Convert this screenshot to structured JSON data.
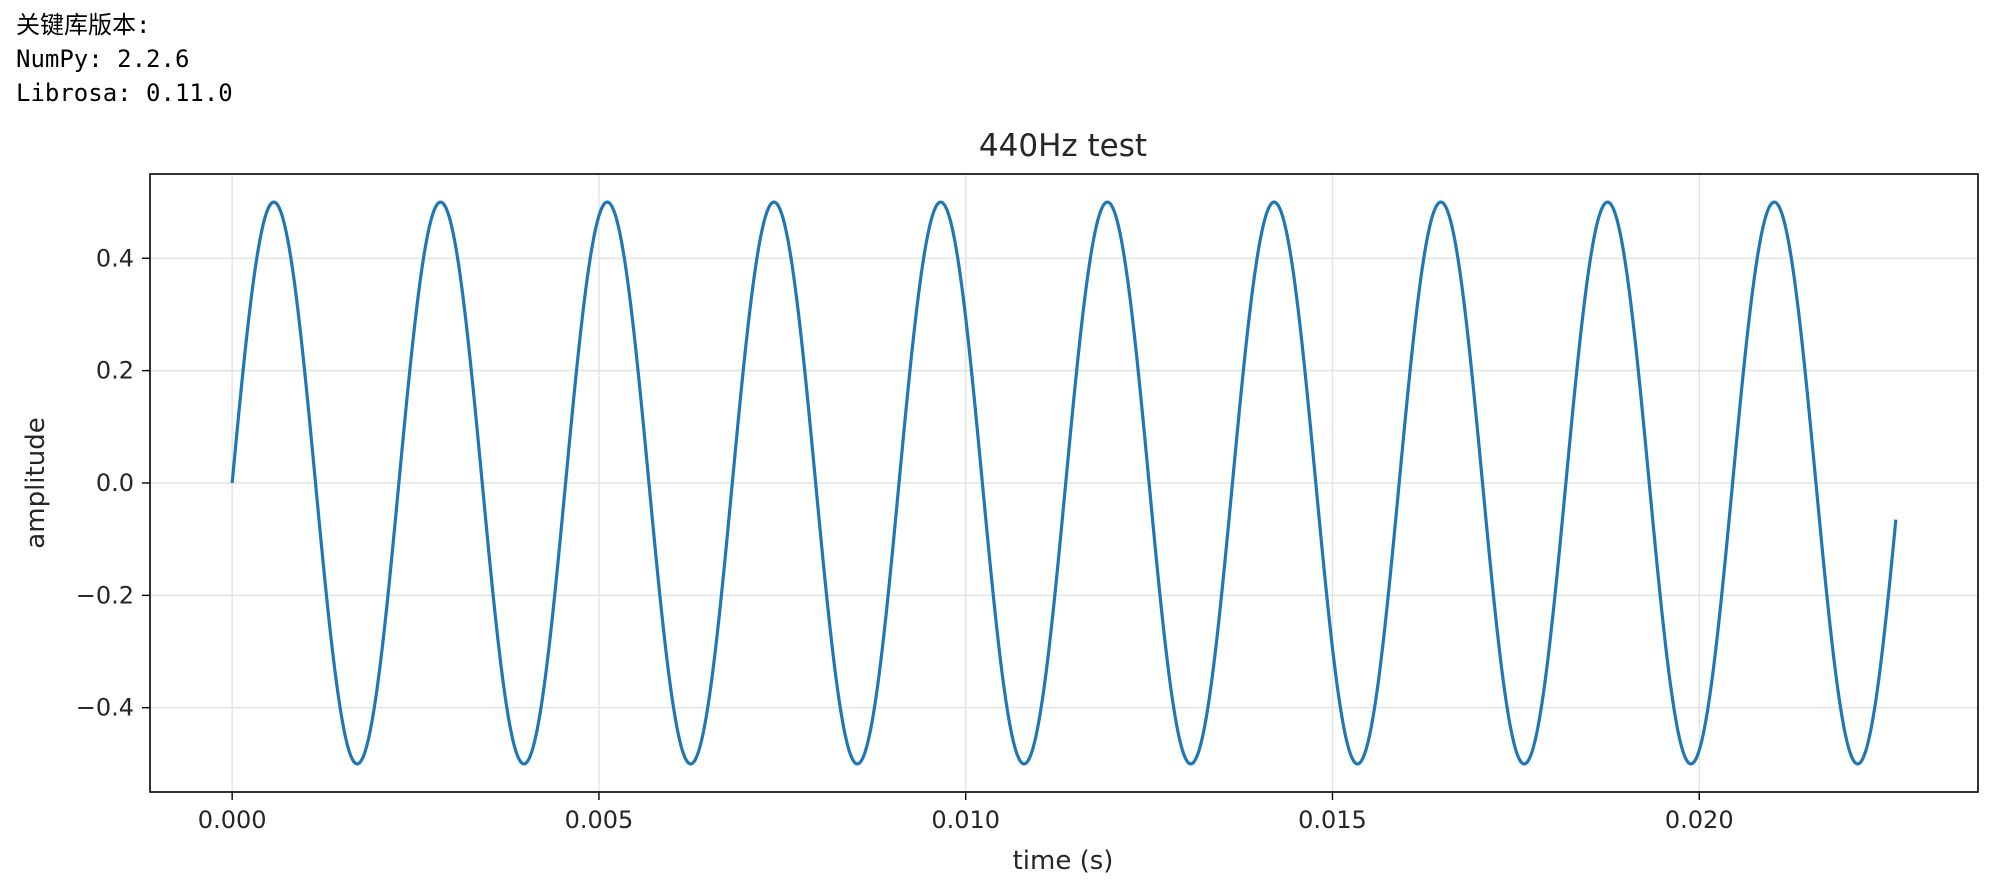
{
  "console": {
    "lines": [
      "关键库版本:",
      "NumPy: 2.2.6",
      "Librosa: 0.11.0"
    ]
  },
  "chart_data": {
    "type": "line",
    "title": "440Hz test",
    "xlabel": "time (s)",
    "ylabel": "amplitude",
    "xlim": [
      -0.00112,
      0.0238
    ],
    "ylim": [
      -0.55,
      0.55
    ],
    "x_ticks": [
      0.0,
      0.005,
      0.01,
      0.015,
      0.02
    ],
    "x_tick_labels": [
      "0.000",
      "0.005",
      "0.010",
      "0.015",
      "0.020"
    ],
    "y_ticks": [
      -0.4,
      -0.2,
      0.0,
      0.2,
      0.4
    ],
    "y_tick_labels": [
      "−0.4",
      "−0.2",
      "0.0",
      "0.2",
      "0.4"
    ],
    "grid": true,
    "series": [
      {
        "frequency_hz": 440,
        "amplitude": 0.5,
        "x_start": 0.0,
        "x_end": 0.02268,
        "color": "#1f77b4"
      }
    ]
  }
}
